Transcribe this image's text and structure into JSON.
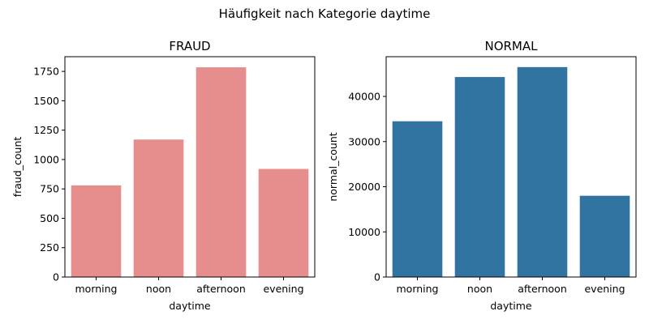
{
  "chart_data": {
    "title": "Häufigkeit nach Kategorie daytime",
    "charts": [
      {
        "type": "bar",
        "title": "FRAUD",
        "xlabel": "daytime",
        "ylabel": "fraud_count",
        "categories": [
          "morning",
          "noon",
          "afternoon",
          "evening"
        ],
        "values": [
          780,
          1170,
          1785,
          920
        ],
        "ylim": [
          0,
          1875
        ],
        "yticks": [
          0,
          250,
          500,
          750,
          1000,
          1250,
          1500,
          1750
        ],
        "ytick_labels": [
          "0",
          "250",
          "500",
          "750",
          "1000",
          "1250",
          "1500",
          "1750"
        ],
        "color": "#e68e8e",
        "grid": false
      },
      {
        "type": "bar",
        "title": "NORMAL",
        "xlabel": "daytime",
        "ylabel": "normal_count",
        "categories": [
          "morning",
          "noon",
          "afternoon",
          "evening"
        ],
        "values": [
          34500,
          44300,
          46500,
          18000
        ],
        "ylim": [
          0,
          48800
        ],
        "yticks": [
          0,
          10000,
          20000,
          30000,
          40000
        ],
        "ytick_labels": [
          "0",
          "10000",
          "20000",
          "30000",
          "40000"
        ],
        "color": "#3274a1",
        "grid": false
      }
    ]
  }
}
